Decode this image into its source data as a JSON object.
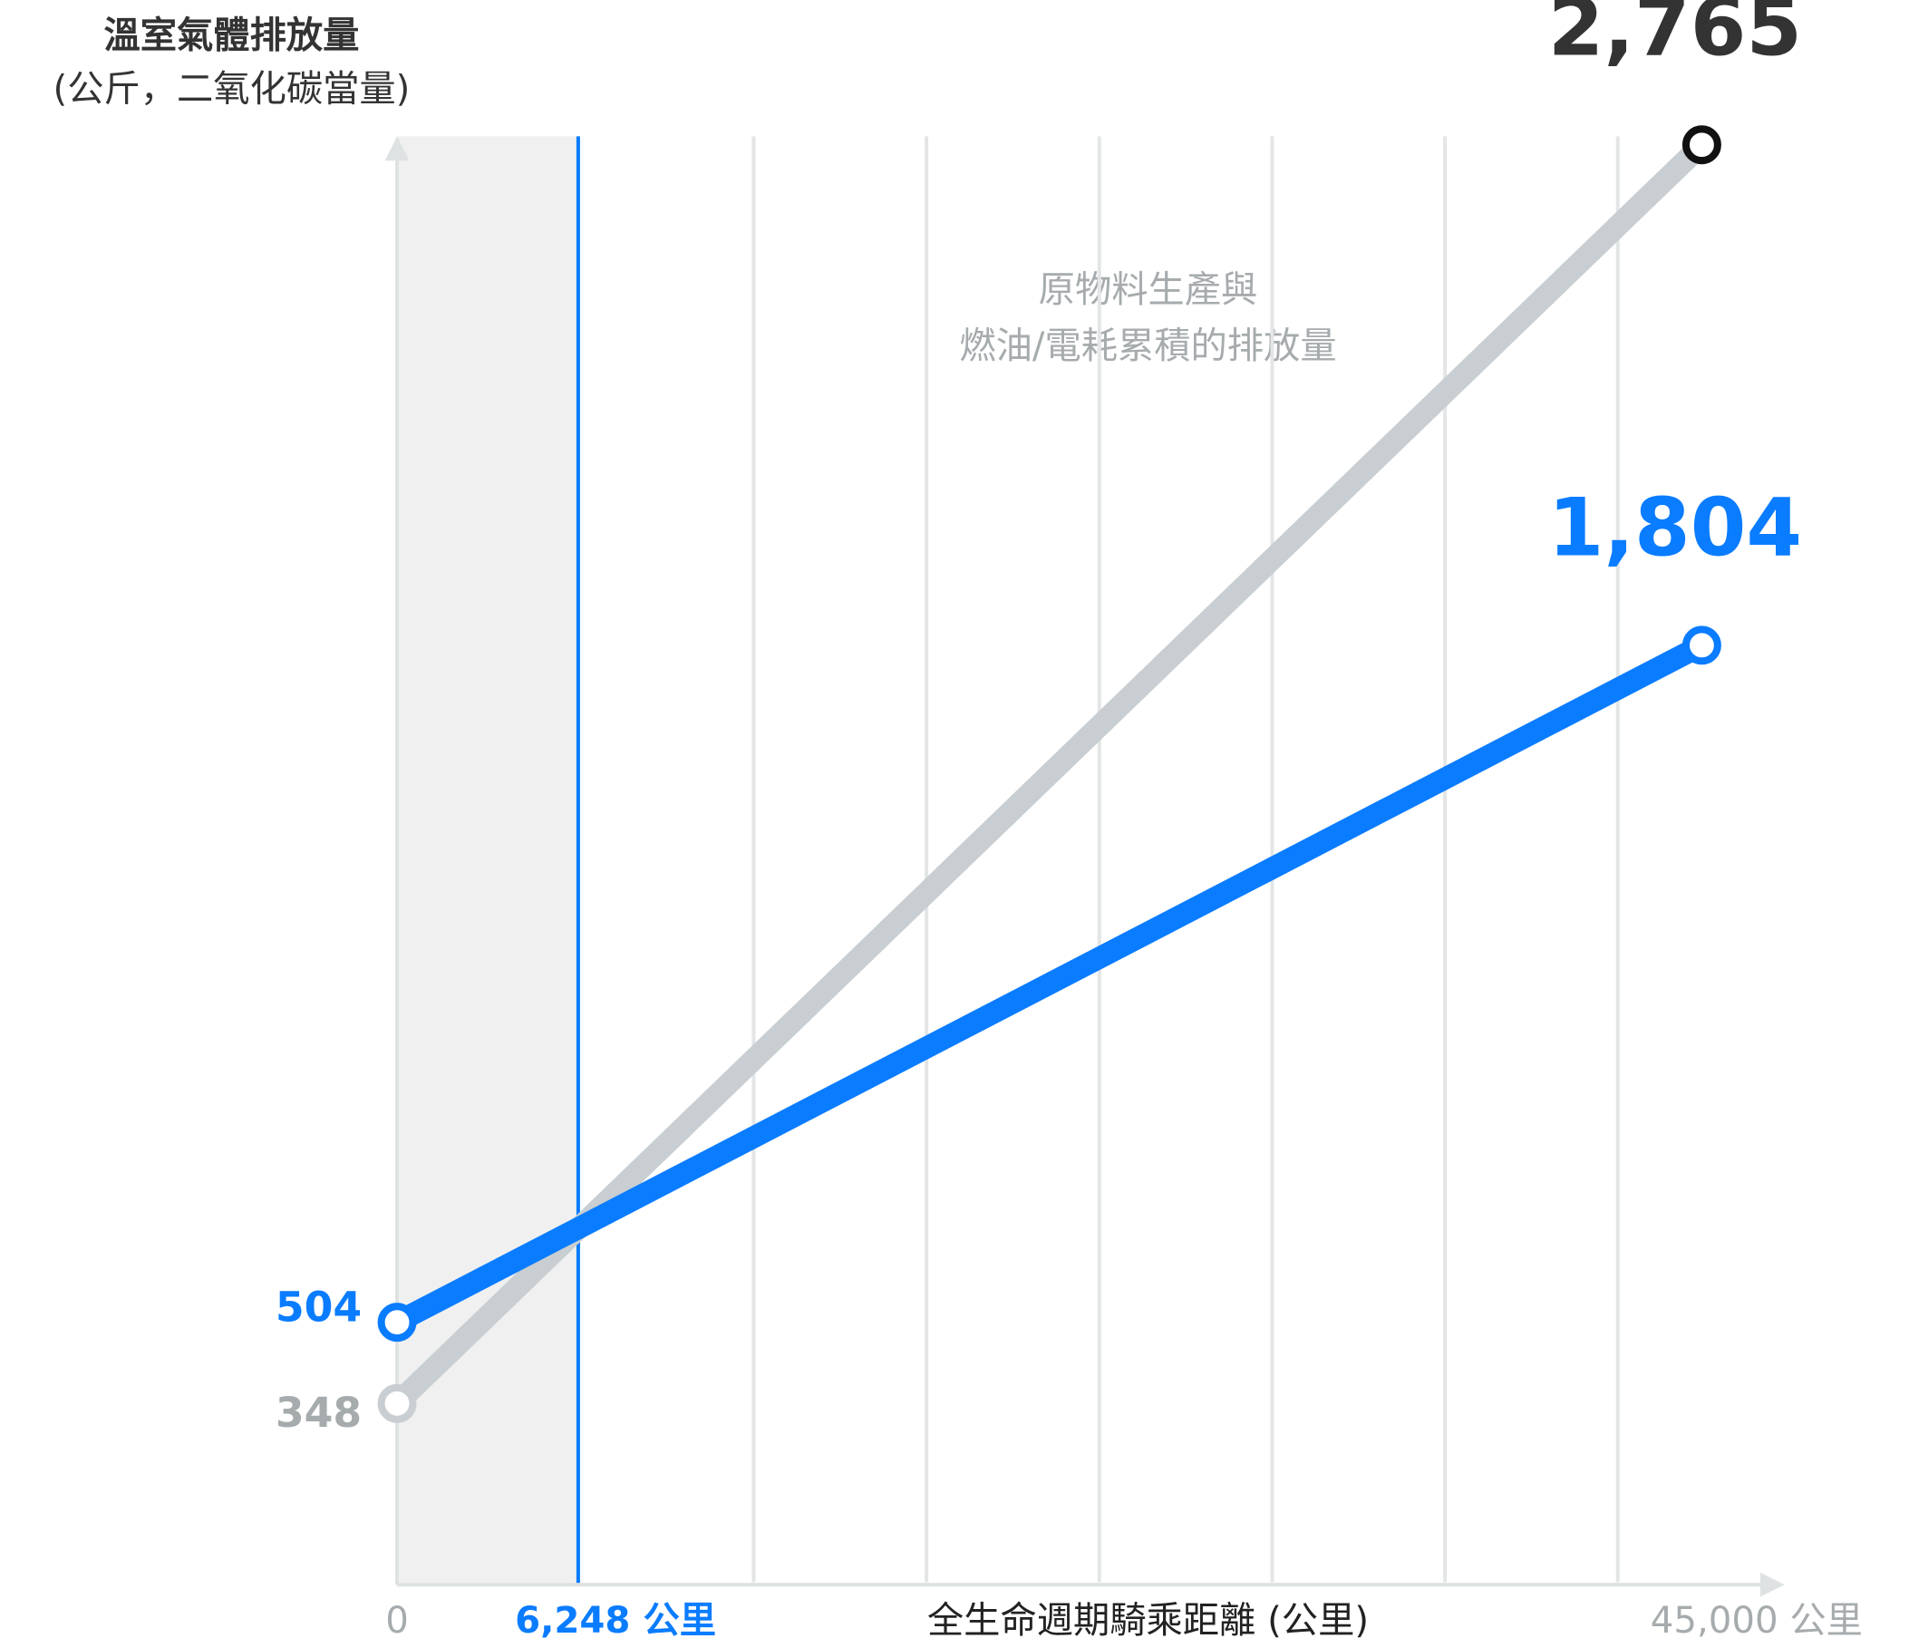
{
  "chart_data": {
    "type": "line",
    "y_label_lines": [
      "溫室氣體排放量",
      "(公斤，二氧化碳當量)"
    ],
    "x_label": "全生命週期騎乘距離 (公里)",
    "annotation_lines": [
      "原物料生產與",
      "燃油/電耗累積的排放量"
    ],
    "x": [
      0,
      45000
    ],
    "xlim": [
      0,
      45000
    ],
    "xticks": [
      0,
      {
        "value": 6248,
        "label": "6,248 公里"
      },
      {
        "value": 45000,
        "label": "45,000 公里"
      }
    ],
    "ylim": [
      0,
      2800
    ],
    "shaded_xrange": [
      0,
      6248
    ],
    "series": [
      {
        "color": "#c8ced1",
        "label_color": "#a6abad",
        "values": [
          348,
          2765
        ],
        "value_labels": [
          "348",
          "2,765"
        ]
      },
      {
        "color": "#0a7cff",
        "label_color": "#0a7cff",
        "values": [
          504,
          1804
        ],
        "value_labels": [
          "504",
          "1,804"
        ]
      }
    ]
  }
}
